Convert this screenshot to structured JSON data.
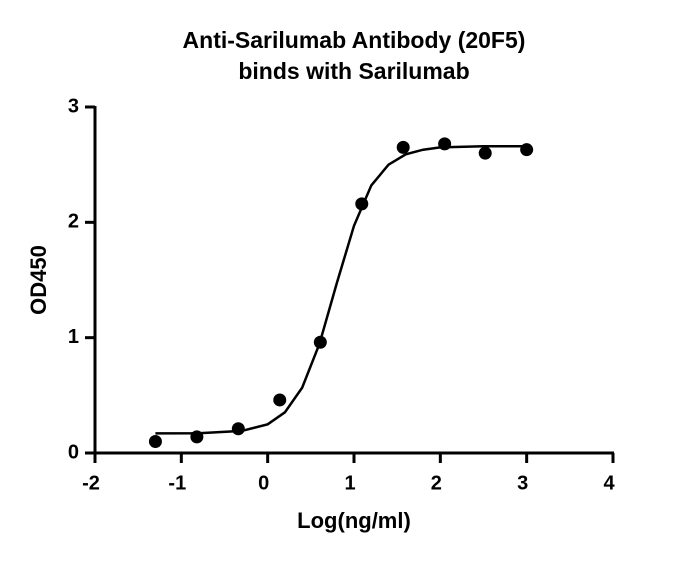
{
  "chart_data": {
    "type": "scatter",
    "title": "Anti-Sarilumab Antibody (20F5)",
    "subtitle": "binds with Sarilumab",
    "x_label": "Log(ng/ml)",
    "y_label": "OD450",
    "points": {
      "x": [
        -1.3,
        -0.82,
        -0.34,
        0.14,
        0.61,
        1.09,
        1.57,
        2.05,
        2.52,
        3.0
      ],
      "values": [
        0.1,
        0.14,
        0.21,
        0.46,
        0.96,
        2.16,
        2.65,
        2.68,
        2.6,
        2.63
      ]
    },
    "fit": {
      "x": [
        -1.3,
        -0.8,
        -0.3,
        0,
        0.2,
        0.4,
        0.6,
        0.8,
        1.0,
        1.2,
        1.4,
        1.6,
        1.8,
        2.0,
        2.5,
        3.0
      ],
      "values": [
        0.17,
        0.172,
        0.192,
        0.249,
        0.353,
        0.567,
        0.948,
        1.47,
        1.97,
        2.32,
        2.5,
        2.59,
        2.63,
        2.65,
        2.66,
        2.66
      ]
    },
    "color": "#000000",
    "xlim": [
      -2,
      4
    ],
    "xticks": [
      -2,
      -1,
      0,
      1,
      2,
      3,
      4
    ],
    "ylim": [
      0,
      3
    ],
    "yticks": [
      0,
      1,
      2,
      3
    ]
  }
}
